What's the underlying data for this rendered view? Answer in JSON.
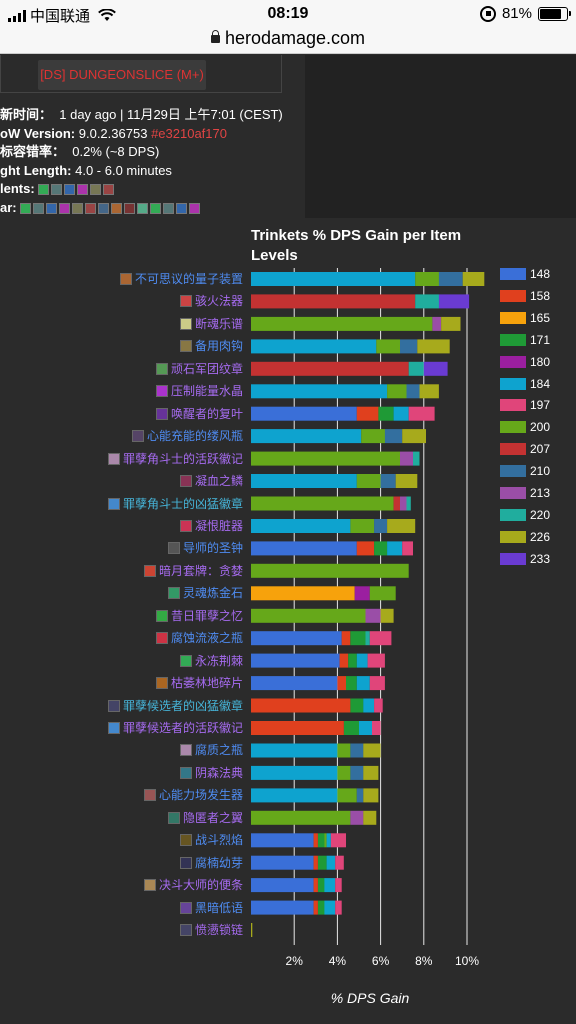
{
  "status": {
    "carrier": "中国联通",
    "time": "08:19",
    "battery": "81%",
    "battery_level": 0.81
  },
  "browser": {
    "url": "herodamage.com"
  },
  "header": {
    "dungeon_label": "[DS] DUNGEONSLICE (M+)"
  },
  "info": {
    "updated_label": "新时间：",
    "updated_value": "1 day ago | 11月29日 上午7:01 (CEST)",
    "version_label": "oW Version:",
    "version_value": "9.0.2.36753",
    "version_hash": "#e3210af170",
    "error_label": "标容错率：",
    "error_value": "0.2% (~8 DPS)",
    "fight_label": "ght Length:",
    "fight_value": "4.0 - 6.0 minutes",
    "talents_label": "lents:",
    "gear_label": "ar:"
  },
  "chart_data": {
    "type": "bar",
    "title": "Trinkets % DPS Gain per Item Levels",
    "xlabel": "% DPS Gain",
    "xticks": [
      "2%",
      "4%",
      "6%",
      "8%",
      "10%"
    ],
    "xlim": [
      0,
      11
    ],
    "legend_position": "right",
    "legend": [
      {
        "name": "148",
        "color": "#3a6fd8"
      },
      {
        "name": "158",
        "color": "#e0401e"
      },
      {
        "name": "165",
        "color": "#f7a20c"
      },
      {
        "name": "171",
        "color": "#1f9a36"
      },
      {
        "name": "180",
        "color": "#9b1fa0"
      },
      {
        "name": "184",
        "color": "#0ea3cf"
      },
      {
        "name": "197",
        "color": "#e0457a"
      },
      {
        "name": "200",
        "color": "#66a81a"
      },
      {
        "name": "207",
        "color": "#c43232"
      },
      {
        "name": "210",
        "color": "#336f9f"
      },
      {
        "name": "213",
        "color": "#9a4ea7"
      },
      {
        "name": "220",
        "color": "#20ad9e"
      },
      {
        "name": "226",
        "color": "#a7aa1c"
      },
      {
        "name": "233",
        "color": "#6a3bd2"
      }
    ],
    "items": [
      {
        "name": "不可思议的量子装置",
        "color_class": "blue",
        "segments": [
          [
            "184",
            7.6
          ],
          [
            "200",
            1.1
          ],
          [
            "210",
            1.1
          ],
          [
            "226",
            1.0
          ]
        ]
      },
      {
        "name": "骇火法器",
        "color_class": "purple",
        "segments": [
          [
            "207",
            7.6
          ],
          [
            "220",
            1.1
          ],
          [
            "233",
            1.4
          ]
        ]
      },
      {
        "name": "断魂乐谱",
        "color_class": "purple",
        "segments": [
          [
            "200",
            8.4
          ],
          [
            "213",
            0.4
          ],
          [
            "226",
            0.9
          ]
        ]
      },
      {
        "name": "备用肉钩",
        "color_class": "blue",
        "segments": [
          [
            "184",
            5.8
          ],
          [
            "200",
            1.1
          ],
          [
            "210",
            0.8
          ],
          [
            "226",
            1.5
          ]
        ]
      },
      {
        "name": "顽石军团纹章",
        "color_class": "purple",
        "segments": [
          [
            "207",
            7.3
          ],
          [
            "220",
            0.7
          ],
          [
            "233",
            1.1
          ]
        ]
      },
      {
        "name": "压制能量水晶",
        "color_class": "purple",
        "segments": [
          [
            "184",
            6.3
          ],
          [
            "200",
            0.9
          ],
          [
            "210",
            0.6
          ],
          [
            "226",
            0.9
          ]
        ]
      },
      {
        "name": "唤醒者的复叶",
        "color_class": "purple",
        "segments": [
          [
            "148",
            4.9
          ],
          [
            "158",
            1.0
          ],
          [
            "171",
            0.7
          ],
          [
            "184",
            0.7
          ],
          [
            "197",
            1.2
          ]
        ]
      },
      {
        "name": "心能充能的缕风瓶",
        "color_class": "blue",
        "segments": [
          [
            "184",
            5.1
          ],
          [
            "200",
            1.1
          ],
          [
            "210",
            0.8
          ],
          [
            "226",
            1.1
          ]
        ]
      },
      {
        "name": "罪孽角斗士的活跃徽记",
        "color_class": "purple",
        "segments": [
          [
            "200",
            6.9
          ],
          [
            "213",
            0.6
          ],
          [
            "220",
            0.3
          ]
        ]
      },
      {
        "name": "凝血之鳞",
        "color_class": "purple",
        "segments": [
          [
            "184",
            4.9
          ],
          [
            "200",
            1.1
          ],
          [
            "210",
            0.7
          ],
          [
            "226",
            1.0
          ]
        ]
      },
      {
        "name": "罪孽角斗士的凶猛徽章",
        "color_class": "cyan",
        "segments": [
          [
            "200",
            6.6
          ],
          [
            "207",
            0.3
          ],
          [
            "213",
            0.3
          ],
          [
            "220",
            0.2
          ]
        ]
      },
      {
        "name": "凝恨脏器",
        "color_class": "purple",
        "segments": [
          [
            "184",
            4.6
          ],
          [
            "200",
            1.1
          ],
          [
            "210",
            0.6
          ],
          [
            "226",
            1.3
          ]
        ]
      },
      {
        "name": "导师的圣钟",
        "color_class": "blue",
        "segments": [
          [
            "148",
            4.9
          ],
          [
            "158",
            0.8
          ],
          [
            "171",
            0.6
          ],
          [
            "184",
            0.7
          ],
          [
            "197",
            0.5
          ]
        ]
      },
      {
        "name": "暗月套牌：贪婪",
        "color_class": "purple",
        "segments": [
          [
            "200",
            7.3
          ]
        ]
      },
      {
        "name": "灵魂炼金石",
        "color_class": "blue",
        "segments": [
          [
            "165",
            4.8
          ],
          [
            "180",
            0.7
          ],
          [
            "200",
            1.2
          ]
        ]
      },
      {
        "name": "昔日罪孽之忆",
        "color_class": "purple",
        "segments": [
          [
            "200",
            5.3
          ],
          [
            "213",
            0.7
          ],
          [
            "226",
            0.6
          ]
        ]
      },
      {
        "name": "腐蚀流液之瓶",
        "color_class": "blue",
        "segments": [
          [
            "148",
            4.2
          ],
          [
            "158",
            0.4
          ],
          [
            "171",
            0.7
          ],
          [
            "220",
            0.2
          ],
          [
            "197",
            1.0
          ]
        ]
      },
      {
        "name": "永冻荆棘",
        "color_class": "purple",
        "segments": [
          [
            "148",
            4.1
          ],
          [
            "158",
            0.4
          ],
          [
            "171",
            0.4
          ],
          [
            "184",
            0.5
          ],
          [
            "197",
            0.8
          ]
        ]
      },
      {
        "name": "枯萎林地碎片",
        "color_class": "purple",
        "segments": [
          [
            "148",
            4.0
          ],
          [
            "158",
            0.4
          ],
          [
            "171",
            0.5
          ],
          [
            "184",
            0.6
          ],
          [
            "197",
            0.7
          ]
        ]
      },
      {
        "name": "罪孽候选者的凶猛徽章",
        "color_class": "cyan",
        "segments": [
          [
            "158",
            4.6
          ],
          [
            "171",
            0.6
          ],
          [
            "184",
            0.5
          ],
          [
            "197",
            0.4
          ]
        ]
      },
      {
        "name": "罪孽候选者的活跃徽记",
        "color_class": "purple",
        "segments": [
          [
            "158",
            4.3
          ],
          [
            "171",
            0.7
          ],
          [
            "184",
            0.6
          ],
          [
            "197",
            0.4
          ]
        ]
      },
      {
        "name": "腐质之瓶",
        "color_class": "blue",
        "segments": [
          [
            "184",
            4.0
          ],
          [
            "200",
            0.6
          ],
          [
            "210",
            0.6
          ],
          [
            "226",
            0.8
          ]
        ]
      },
      {
        "name": "阴森法典",
        "color_class": "purple",
        "segments": [
          [
            "184",
            4.0
          ],
          [
            "200",
            0.6
          ],
          [
            "210",
            0.6
          ],
          [
            "226",
            0.7
          ]
        ]
      },
      {
        "name": "心能力场发生器",
        "color_class": "blue",
        "segments": [
          [
            "184",
            4.0
          ],
          [
            "200",
            0.9
          ],
          [
            "210",
            0.3
          ],
          [
            "226",
            0.7
          ]
        ]
      },
      {
        "name": "隐匿者之翼",
        "color_class": "purple",
        "segments": [
          [
            "200",
            4.6
          ],
          [
            "213",
            0.6
          ],
          [
            "226",
            0.6
          ]
        ]
      },
      {
        "name": "战斗烈焰",
        "color_class": "blue",
        "segments": [
          [
            "148",
            2.9
          ],
          [
            "158",
            0.2
          ],
          [
            "171",
            0.3
          ],
          [
            "200",
            0.1
          ],
          [
            "184",
            0.2
          ],
          [
            "197",
            0.7
          ]
        ]
      },
      {
        "name": "腐楠幼芽",
        "color_class": "blue",
        "segments": [
          [
            "148",
            2.9
          ],
          [
            "158",
            0.2
          ],
          [
            "171",
            0.4
          ],
          [
            "184",
            0.4
          ],
          [
            "197",
            0.4
          ]
        ]
      },
      {
        "name": "决斗大师的便条",
        "color_class": "purple",
        "segments": [
          [
            "148",
            2.9
          ],
          [
            "158",
            0.2
          ],
          [
            "171",
            0.3
          ],
          [
            "184",
            0.5
          ],
          [
            "197",
            0.3
          ]
        ]
      },
      {
        "name": "黑暗低语",
        "color_class": "blue",
        "segments": [
          [
            "148",
            2.9
          ],
          [
            "158",
            0.2
          ],
          [
            "171",
            0.3
          ],
          [
            "184",
            0.5
          ],
          [
            "197",
            0.3
          ]
        ]
      },
      {
        "name": "愤懑锁链",
        "color_class": "purple",
        "segments": [
          [
            "226",
            0.06
          ]
        ]
      }
    ]
  }
}
